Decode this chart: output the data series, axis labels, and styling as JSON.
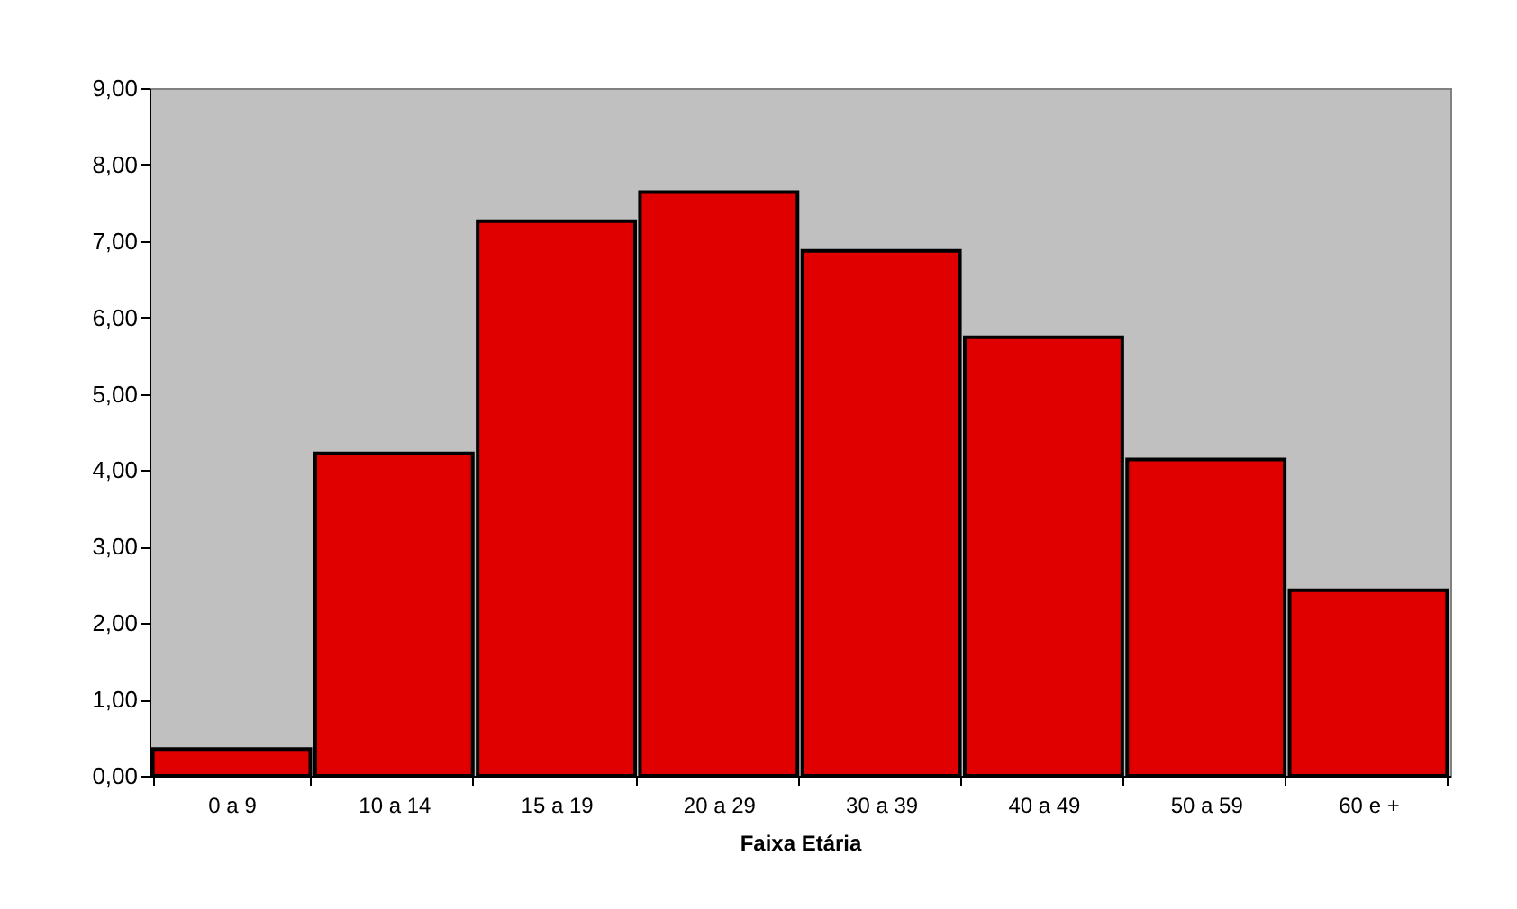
{
  "chart_data": {
    "type": "bar",
    "xlabel": "Faixa Etária",
    "categories": [
      "0 a 9",
      "10 a 14",
      "15 a 19",
      "20 a 29",
      "30 a 39",
      "40 a 49",
      "50 a 59",
      "60 e +"
    ],
    "values": [
      0.35,
      4.22,
      7.26,
      7.64,
      6.87,
      5.74,
      4.14,
      2.43
    ],
    "color": "#e00000",
    "ylim": [
      0,
      9
    ],
    "yticks": [
      {
        "value": 0,
        "label": "0,00"
      },
      {
        "value": 1,
        "label": "1,00"
      },
      {
        "value": 2,
        "label": "2,00"
      },
      {
        "value": 3,
        "label": "3,00"
      },
      {
        "value": 4,
        "label": "4,00"
      },
      {
        "value": 5,
        "label": "5,00"
      },
      {
        "value": 6,
        "label": "6,00"
      },
      {
        "value": 7,
        "label": "7,00"
      },
      {
        "value": 8,
        "label": "8,00"
      },
      {
        "value": 9,
        "label": "9,00"
      }
    ]
  }
}
